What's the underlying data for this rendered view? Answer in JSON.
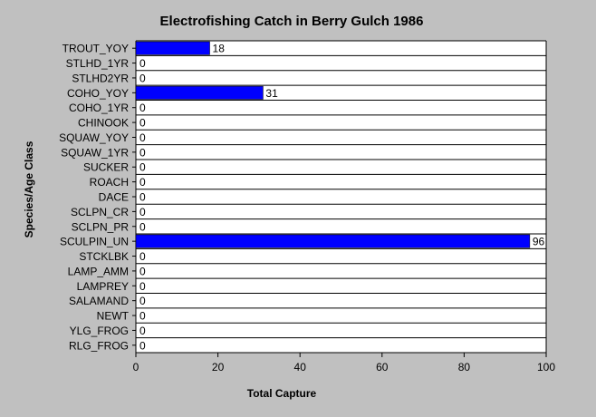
{
  "chart_data": {
    "type": "bar",
    "orientation": "horizontal",
    "title": "Electrofishing Catch in Berry Gulch 1986",
    "xlabel": "Total Capture",
    "ylabel": "Species/Age Class",
    "xlim": [
      0,
      100
    ],
    "xticks": [
      "0",
      "20",
      "40",
      "60",
      "80",
      "100"
    ],
    "grid": true,
    "categories": [
      "TROUT_YOY",
      "STLHD_1YR",
      "STLHD2YR",
      "COHO_YOY",
      "COHO_1YR",
      "CHINOOK",
      "SQUAW_YOY",
      "SQUAW_1YR",
      "SUCKER",
      "ROACH",
      "DACE",
      "SCLPN_CR",
      "SCLPN_PR",
      "SCULPIN_UN",
      "STCKLBK",
      "LAMP_AMM",
      "LAMPREY",
      "SALAMAND",
      "NEWT",
      "YLG_FROG",
      "RLG_FROG"
    ],
    "values": [
      18,
      0,
      0,
      31,
      0,
      0,
      0,
      0,
      0,
      0,
      0,
      0,
      0,
      96,
      0,
      0,
      0,
      0,
      0,
      0,
      0
    ],
    "data_labels": [
      "18",
      "0",
      "0",
      "31",
      "0",
      "0",
      "0",
      "0",
      "0",
      "0",
      "0",
      "0",
      "0",
      "96",
      "0",
      "0",
      "0",
      "0",
      "0",
      "0",
      "0"
    ],
    "colors": {
      "bar": "#0000ff",
      "background": "#c0c0c0",
      "plot": "#ffffff",
      "grid": "#000000"
    }
  }
}
